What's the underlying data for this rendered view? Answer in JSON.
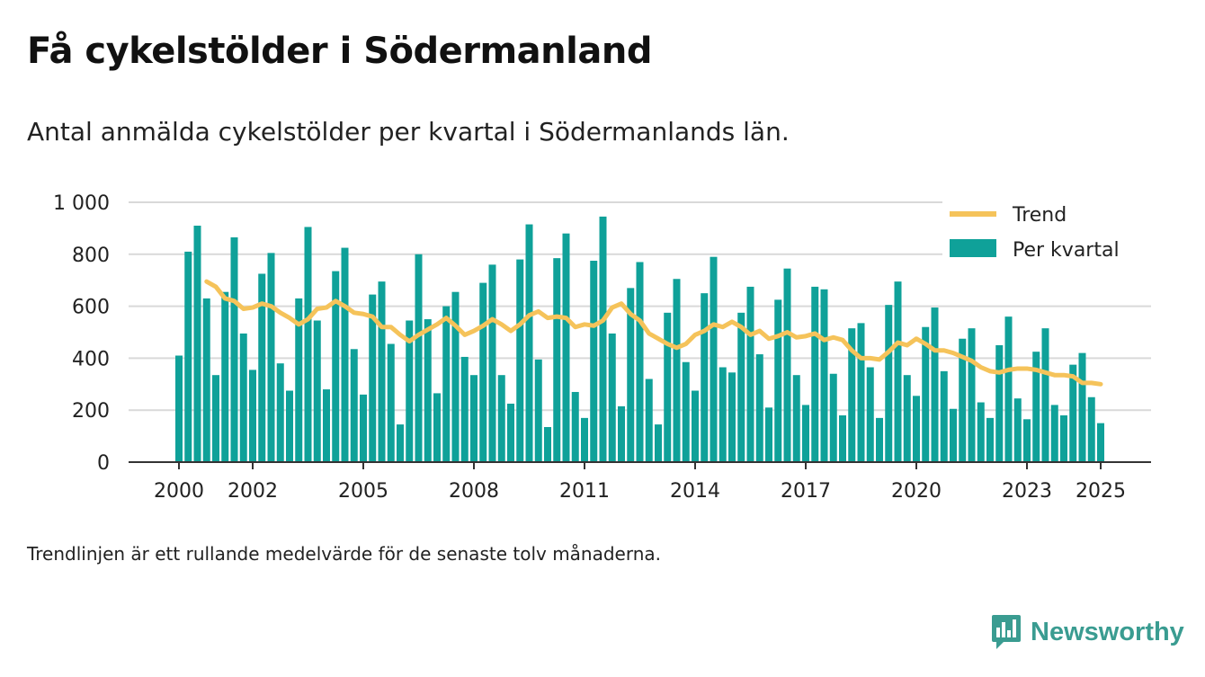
{
  "title": "Få cykelstölder i Södermanland",
  "subtitle": "Antal anmälda cykelstölder per kvartal i Södermanlands län.",
  "footnote": "Trendlinjen är ett rullande medelvärde för de senaste tolv månaderna.",
  "brand": {
    "name": "Newsworthy",
    "icon": "newsworthy-logo-icon"
  },
  "colors": {
    "bars": "#0fa199",
    "trend": "#f5c35a",
    "grid": "#d9d9d9",
    "axis": "#333333"
  },
  "chart_data": {
    "type": "bar",
    "title": "Få cykelstölder i Södermanland",
    "ylim": [
      0,
      1000
    ],
    "y_ticks": [
      0,
      200,
      400,
      600,
      800,
      1000
    ],
    "y_tick_labels": [
      "0",
      "200",
      "400",
      "600",
      "800",
      "1 000"
    ],
    "x_ticks": [
      2000,
      2002,
      2005,
      2008,
      2011,
      2014,
      2017,
      2020,
      2023,
      2025
    ],
    "x_tick_labels": [
      "2000",
      "2002",
      "2005",
      "2008",
      "2011",
      "2014",
      "2017",
      "2020",
      "2023",
      "2025"
    ],
    "grid": true,
    "legend": {
      "position": "top-right",
      "entries": [
        "Trend",
        "Per kvartal"
      ]
    },
    "series": [
      {
        "name": "Per kvartal",
        "type": "bar",
        "x": [
          2000.0,
          2000.25,
          2000.5,
          2000.75,
          2001.0,
          2001.25,
          2001.5,
          2001.75,
          2002.0,
          2002.25,
          2002.5,
          2002.75,
          2003.0,
          2003.25,
          2003.5,
          2003.75,
          2004.0,
          2004.25,
          2004.5,
          2004.75,
          2005.0,
          2005.25,
          2005.5,
          2005.75,
          2006.0,
          2006.25,
          2006.5,
          2006.75,
          2007.0,
          2007.25,
          2007.5,
          2007.75,
          2008.0,
          2008.25,
          2008.5,
          2008.75,
          2009.0,
          2009.25,
          2009.5,
          2009.75,
          2010.0,
          2010.25,
          2010.5,
          2010.75,
          2011.0,
          2011.25,
          2011.5,
          2011.75,
          2012.0,
          2012.25,
          2012.5,
          2012.75,
          2013.0,
          2013.25,
          2013.5,
          2013.75,
          2014.0,
          2014.25,
          2014.5,
          2014.75,
          2015.0,
          2015.25,
          2015.5,
          2015.75,
          2016.0,
          2016.25,
          2016.5,
          2016.75,
          2017.0,
          2017.25,
          2017.5,
          2017.75,
          2018.0,
          2018.25,
          2018.5,
          2018.75,
          2019.0,
          2019.25,
          2019.5,
          2019.75,
          2020.0,
          2020.25,
          2020.5,
          2020.75,
          2021.0,
          2021.25,
          2021.5,
          2021.75,
          2022.0,
          2022.25,
          2022.5,
          2022.75,
          2023.0,
          2023.25,
          2023.5,
          2023.75,
          2024.0,
          2024.25,
          2024.5,
          2024.75,
          2025.0
        ],
        "values": [
          410,
          810,
          910,
          630,
          335,
          655,
          865,
          495,
          355,
          725,
          805,
          380,
          275,
          630,
          905,
          545,
          280,
          735,
          825,
          435,
          260,
          645,
          695,
          455,
          145,
          545,
          800,
          550,
          265,
          600,
          655,
          405,
          335,
          690,
          760,
          335,
          225,
          780,
          915,
          395,
          135,
          785,
          880,
          270,
          170,
          775,
          945,
          495,
          215,
          670,
          770,
          320,
          145,
          575,
          705,
          385,
          275,
          650,
          790,
          365,
          345,
          575,
          675,
          415,
          210,
          625,
          745,
          335,
          220,
          675,
          665,
          340,
          180,
          515,
          535,
          365,
          170,
          605,
          695,
          335,
          255,
          520,
          595,
          350,
          205,
          475,
          515,
          230,
          170,
          450,
          560,
          245,
          165,
          425,
          515,
          220,
          180,
          375,
          420,
          250,
          150
        ]
      },
      {
        "name": "Trend",
        "type": "line",
        "x": [
          2000.75,
          2001.0,
          2001.25,
          2001.5,
          2001.75,
          2002.0,
          2002.25,
          2002.5,
          2002.75,
          2003.0,
          2003.25,
          2003.5,
          2003.75,
          2004.0,
          2004.25,
          2004.5,
          2004.75,
          2005.0,
          2005.25,
          2005.5,
          2005.75,
          2006.0,
          2006.25,
          2006.5,
          2006.75,
          2007.0,
          2007.25,
          2007.5,
          2007.75,
          2008.0,
          2008.25,
          2008.5,
          2008.75,
          2009.0,
          2009.25,
          2009.5,
          2009.75,
          2010.0,
          2010.25,
          2010.5,
          2010.75,
          2011.0,
          2011.25,
          2011.5,
          2011.75,
          2012.0,
          2012.25,
          2012.5,
          2012.75,
          2013.0,
          2013.25,
          2013.5,
          2013.75,
          2014.0,
          2014.25,
          2014.5,
          2014.75,
          2015.0,
          2015.25,
          2015.5,
          2015.75,
          2016.0,
          2016.25,
          2016.5,
          2016.75,
          2017.0,
          2017.25,
          2017.5,
          2017.75,
          2018.0,
          2018.25,
          2018.5,
          2018.75,
          2019.0,
          2019.25,
          2019.5,
          2019.75,
          2020.0,
          2020.25,
          2020.5,
          2020.75,
          2021.0,
          2021.25,
          2021.5,
          2021.75,
          2022.0,
          2022.25,
          2022.5,
          2022.75,
          2023.0,
          2023.25,
          2023.5,
          2023.75,
          2024.0,
          2024.25,
          2024.5,
          2024.75,
          2025.0
        ],
        "values": [
          695,
          675,
          630,
          620,
          590,
          595,
          610,
          600,
          575,
          555,
          530,
          550,
          590,
          595,
          620,
          600,
          575,
          570,
          560,
          520,
          520,
          490,
          465,
          490,
          510,
          530,
          555,
          525,
          490,
          505,
          525,
          550,
          530,
          505,
          530,
          565,
          580,
          555,
          560,
          555,
          520,
          530,
          525,
          545,
          595,
          610,
          570,
          545,
          495,
          475,
          455,
          440,
          455,
          490,
          505,
          530,
          520,
          540,
          520,
          490,
          505,
          475,
          485,
          500,
          480,
          485,
          495,
          470,
          480,
          470,
          430,
          400,
          400,
          395,
          425,
          460,
          450,
          475,
          455,
          430,
          430,
          420,
          405,
          390,
          365,
          350,
          345,
          355,
          360,
          360,
          355,
          345,
          335,
          335,
          330,
          305,
          305,
          300
        ]
      }
    ]
  }
}
